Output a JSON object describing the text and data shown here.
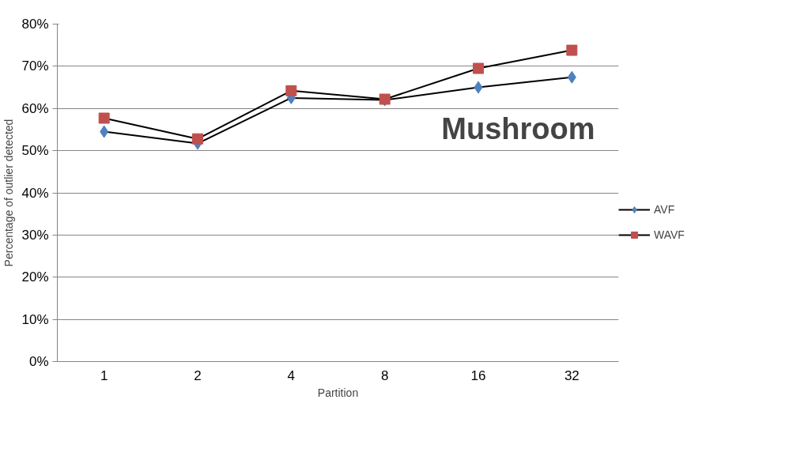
{
  "chart_data": {
    "type": "line",
    "xlabel": "Partition",
    "ylabel": "Percentage of outlier detected",
    "categories": [
      "1",
      "2",
      "4",
      "8",
      "16",
      "32"
    ],
    "series": [
      {
        "name": "AVF",
        "color": "#4f81bd",
        "marker": "diamond",
        "values": [
          54.5,
          51.7,
          62.5,
          62.0,
          65.0,
          67.4
        ]
      },
      {
        "name": "WAVF",
        "color": "#c0504d",
        "marker": "square",
        "values": [
          57.7,
          52.8,
          64.2,
          62.2,
          69.5,
          73.8
        ]
      }
    ],
    "ylim": [
      0,
      80
    ],
    "yticks": [
      {
        "value": 0,
        "label": "0%"
      },
      {
        "value": 10,
        "label": "10%"
      },
      {
        "value": 20,
        "label": "20%"
      },
      {
        "value": 30,
        "label": "30%"
      },
      {
        "value": 40,
        "label": "40%"
      },
      {
        "value": 50,
        "label": "50%"
      },
      {
        "value": 60,
        "label": "60%"
      },
      {
        "value": 70,
        "label": "70%"
      },
      {
        "value": 80,
        "label": "80%"
      }
    ],
    "grid": "y",
    "legend": "right",
    "annotations": [
      "Mushroom"
    ]
  }
}
